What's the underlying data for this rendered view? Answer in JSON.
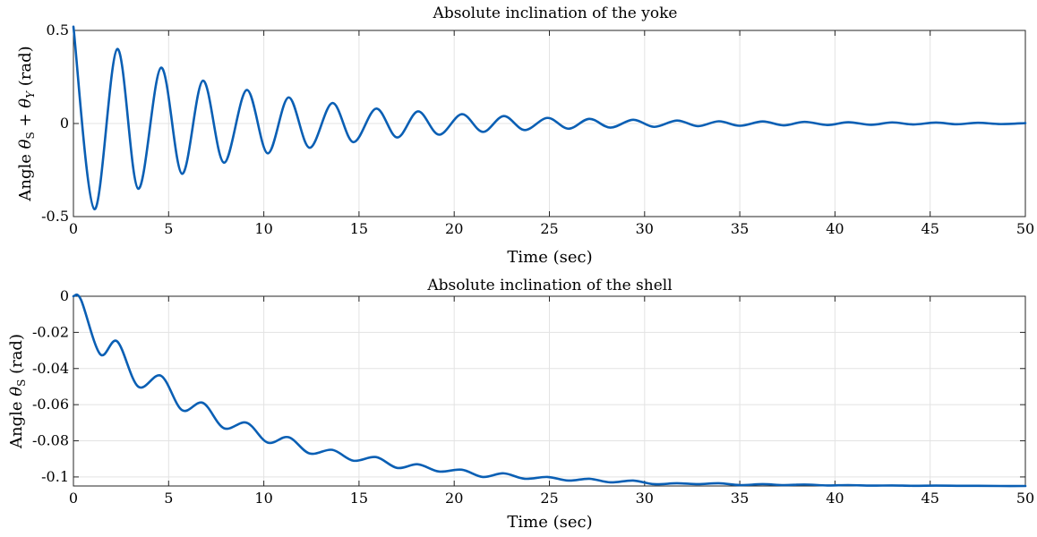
{
  "chart_data": [
    {
      "type": "line",
      "title": "Absolute inclination of the yoke",
      "xlabel": "Time (sec)",
      "ylabel": {
        "prefix": "Angle ",
        "latex": "θ_S + θ_Y",
        "suffix": " (rad)"
      },
      "xlim": [
        0,
        50
      ],
      "ylim": [
        -0.5,
        0.5
      ],
      "xticks": [
        0,
        5,
        10,
        15,
        20,
        25,
        30,
        35,
        40,
        45,
        50
      ],
      "xtick_labels": [
        "0",
        "5",
        "10",
        "15",
        "20",
        "25",
        "30",
        "35",
        "40",
        "45",
        "50"
      ],
      "yticks": [
        -0.5,
        0,
        0.5
      ],
      "ytick_labels": [
        "-0.5",
        "0",
        "0.5"
      ],
      "grid": true,
      "series": [
        {
          "color": "#0a5fb4",
          "x": [
            0,
            1.1,
            2.3,
            3.4,
            4.6,
            5.7,
            6.8,
            7.9,
            9.1,
            10.2,
            11.3,
            12.4,
            13.6,
            14.7,
            15.9,
            17.0,
            18.1,
            19.2,
            20.4,
            21.5,
            22.6,
            23.7,
            24.9,
            26.0,
            27.1,
            28.2,
            29.4,
            30.5,
            31.7,
            32.8,
            33.9,
            35.0,
            36.2,
            37.3,
            38.4,
            39.6,
            40.7,
            41.9,
            43.0,
            44.1,
            45.3,
            46.4,
            47.5,
            48.7,
            50.0
          ],
          "y": [
            0.52,
            -0.46,
            0.4,
            -0.35,
            0.3,
            -0.27,
            0.23,
            -0.21,
            0.18,
            -0.16,
            0.14,
            -0.13,
            0.11,
            -0.1,
            0.08,
            -0.075,
            0.065,
            -0.06,
            0.05,
            -0.045,
            0.04,
            -0.035,
            0.03,
            -0.028,
            0.025,
            -0.022,
            0.02,
            -0.018,
            0.016,
            -0.014,
            0.012,
            -0.012,
            0.011,
            -0.01,
            0.009,
            -0.008,
            0.007,
            -0.007,
            0.006,
            -0.005,
            0.005,
            -0.004,
            0.004,
            -0.003,
            0.002
          ]
        }
      ]
    },
    {
      "type": "line",
      "title": "Absolute inclination of the shell",
      "xlabel": "Time (sec)",
      "ylabel": {
        "prefix": "Angle ",
        "latex": "θ_S",
        "suffix": " (rad)"
      },
      "xlim": [
        0,
        50
      ],
      "ylim": [
        -0.105,
        0
      ],
      "xticks": [
        0,
        5,
        10,
        15,
        20,
        25,
        30,
        35,
        40,
        45,
        50
      ],
      "xtick_labels": [
        "0",
        "5",
        "10",
        "15",
        "20",
        "25",
        "30",
        "35",
        "40",
        "45",
        "50"
      ],
      "yticks": [
        -0.1,
        -0.08,
        -0.06,
        -0.04,
        -0.02,
        0
      ],
      "ytick_labels": [
        "-0.1",
        "-0.08",
        "-0.06",
        "-0.04",
        "-0.02",
        "0"
      ],
      "grid": true,
      "series": [
        {
          "color": "#0a5fb4",
          "x": [
            0,
            0.4,
            1.4,
            2.3,
            3.4,
            4.6,
            5.7,
            6.8,
            7.9,
            9.1,
            10.2,
            11.3,
            12.4,
            13.6,
            14.7,
            15.9,
            17.0,
            18.1,
            19.2,
            20.4,
            21.5,
            22.6,
            23.7,
            24.9,
            26.0,
            27.1,
            28.2,
            29.4,
            30.5,
            31.7,
            32.8,
            33.9,
            35.0,
            36.2,
            37.3,
            38.4,
            39.6,
            40.7,
            41.9,
            43.0,
            44.1,
            45.3,
            46.4,
            47.5,
            48.7,
            50.0
          ],
          "y": [
            0,
            -0.002,
            -0.032,
            -0.025,
            -0.05,
            -0.044,
            -0.063,
            -0.059,
            -0.073,
            -0.07,
            -0.081,
            -0.078,
            -0.087,
            -0.085,
            -0.091,
            -0.089,
            -0.095,
            -0.093,
            -0.097,
            -0.096,
            -0.1,
            -0.098,
            -0.101,
            -0.1,
            -0.102,
            -0.101,
            -0.103,
            -0.102,
            -0.104,
            -0.1035,
            -0.104,
            -0.1035,
            -0.1045,
            -0.104,
            -0.1045,
            -0.1042,
            -0.1047,
            -0.1045,
            -0.1048,
            -0.1047,
            -0.1049,
            -0.1048,
            -0.1049,
            -0.1049,
            -0.105,
            -0.105
          ]
        }
      ]
    }
  ]
}
